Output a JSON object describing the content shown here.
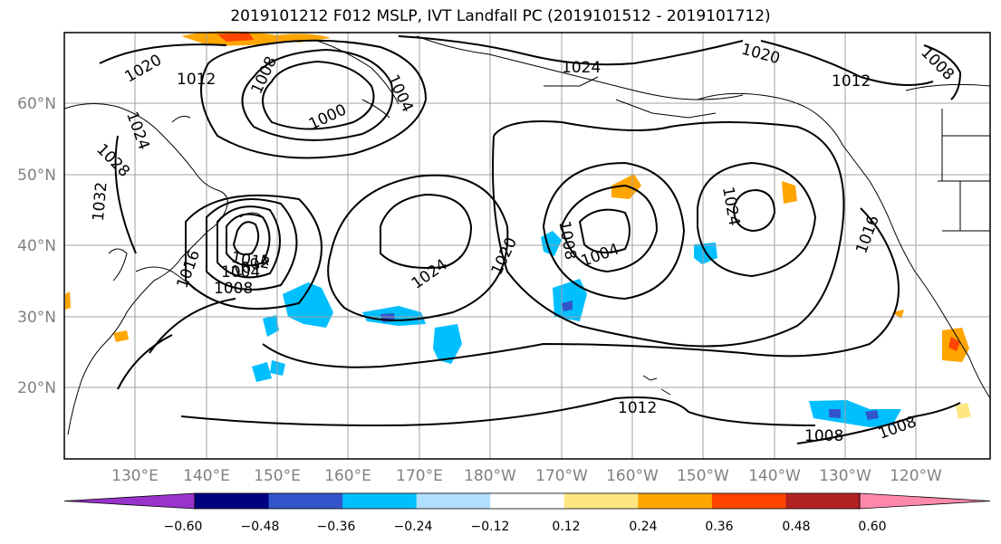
{
  "title": "2019101212 F012 MSLP, IVT Landfall PC (2019101512 - 2019101712)",
  "lat_ticks": [
    "60°N",
    "50°N",
    "40°N",
    "30°N",
    "20°N"
  ],
  "lon_ticks": [
    "130°E",
    "140°E",
    "150°E",
    "160°E",
    "170°E",
    "180°W",
    "170°W",
    "160°W",
    "150°W",
    "140°W",
    "130°W",
    "120°W"
  ],
  "contour_labels": [
    "1020",
    "1012",
    "1008",
    "1024",
    "1028",
    "1032",
    "1016",
    "1000",
    "1004",
    "1004",
    "1012",
    "1008",
    "1004",
    "1024",
    "1008",
    "1020",
    "1024",
    "1020",
    "1024",
    "1016",
    "1012",
    "1008",
    "1004",
    "1012",
    "1008",
    "1008"
  ],
  "colorbar": {
    "colors": [
      "#9933cc",
      "#000080",
      "#3355cc",
      "#00bfff",
      "#b0e0ff",
      "#ffffff",
      "#ffe680",
      "#ffa500",
      "#ff4500",
      "#b22222",
      "#ff88aa"
    ],
    "tick_labels": [
      "−0.60",
      "−0.48",
      "−0.36",
      "−0.24",
      "−0.12",
      "0.12",
      "0.24",
      "0.36",
      "0.48",
      "0.60"
    ]
  }
}
